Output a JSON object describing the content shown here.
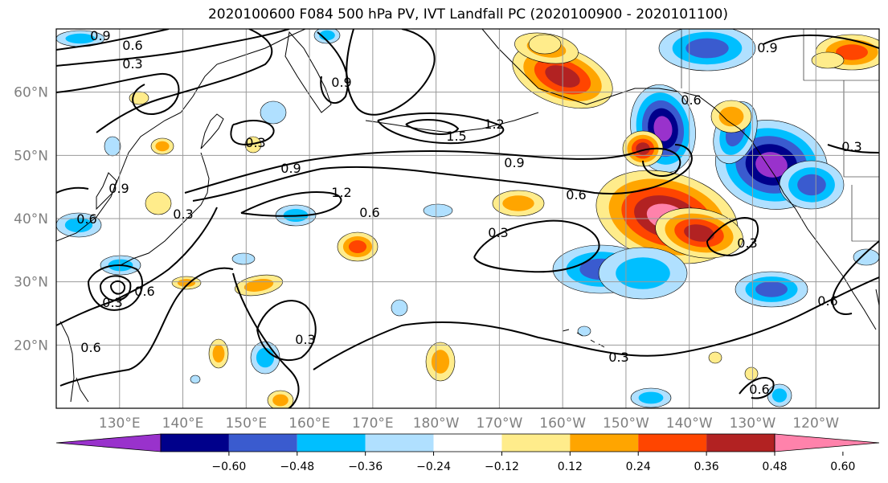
{
  "title": "2020100600 F084 500 hPa PV, IVT Landfall PC (2020100900 - 2020101100)",
  "chart_data": {
    "type": "heatmap",
    "title": "2020100600 F084 500 hPa PV, IVT Landfall PC (2020100900 - 2020101100)",
    "map": {
      "lon_range": [
        120,
        250
      ],
      "lat_range": [
        10,
        70
      ],
      "lat_ticks": [
        "20°N",
        "30°N",
        "40°N",
        "50°N",
        "60°N"
      ],
      "lon_ticks": [
        "130°E",
        "140°E",
        "150°E",
        "160°E",
        "170°E",
        "180°W",
        "170°W",
        "160°W",
        "150°W",
        "140°W",
        "130°W",
        "120°W"
      ],
      "grid": true
    },
    "colorbar": {
      "orientation": "horizontal",
      "extend": "both",
      "levels": [
        -0.72,
        -0.6,
        -0.48,
        -0.36,
        -0.24,
        -0.12,
        0.12,
        0.24,
        0.36,
        0.48,
        0.6,
        0.72
      ],
      "tick_labels": [
        "-0.60",
        "-0.48",
        "-0.36",
        "-0.24",
        "-0.12",
        "0.12",
        "0.24",
        "0.36",
        "0.48",
        "0.60"
      ],
      "colors": [
        "#9932cc",
        "#00008b",
        "#3a5bcf",
        "#00bfff",
        "#b0e0ff",
        "#ffffff",
        "#ffec8b",
        "#ffa500",
        "#ff4500",
        "#b22222",
        "#ff82ab"
      ]
    },
    "contour_labels": [
      "0.9",
      "0.6",
      "0.3",
      "0.9",
      "0.3",
      "1.5",
      "1.2",
      "0.9",
      "0.6",
      "0.3",
      "0.6",
      "0.9",
      "0.6",
      "0.3",
      "0.6",
      "0.9",
      "0.6",
      "0.3",
      "0.3",
      "0.6",
      "0.3",
      "0.3",
      "0.6",
      "0.3",
      "0.6",
      "1.2",
      "0.9"
    ],
    "fields": [
      {
        "name": "PV",
        "style": "black contour lines"
      },
      {
        "name": "IVT Landfall PC",
        "style": "filled contours"
      }
    ]
  }
}
